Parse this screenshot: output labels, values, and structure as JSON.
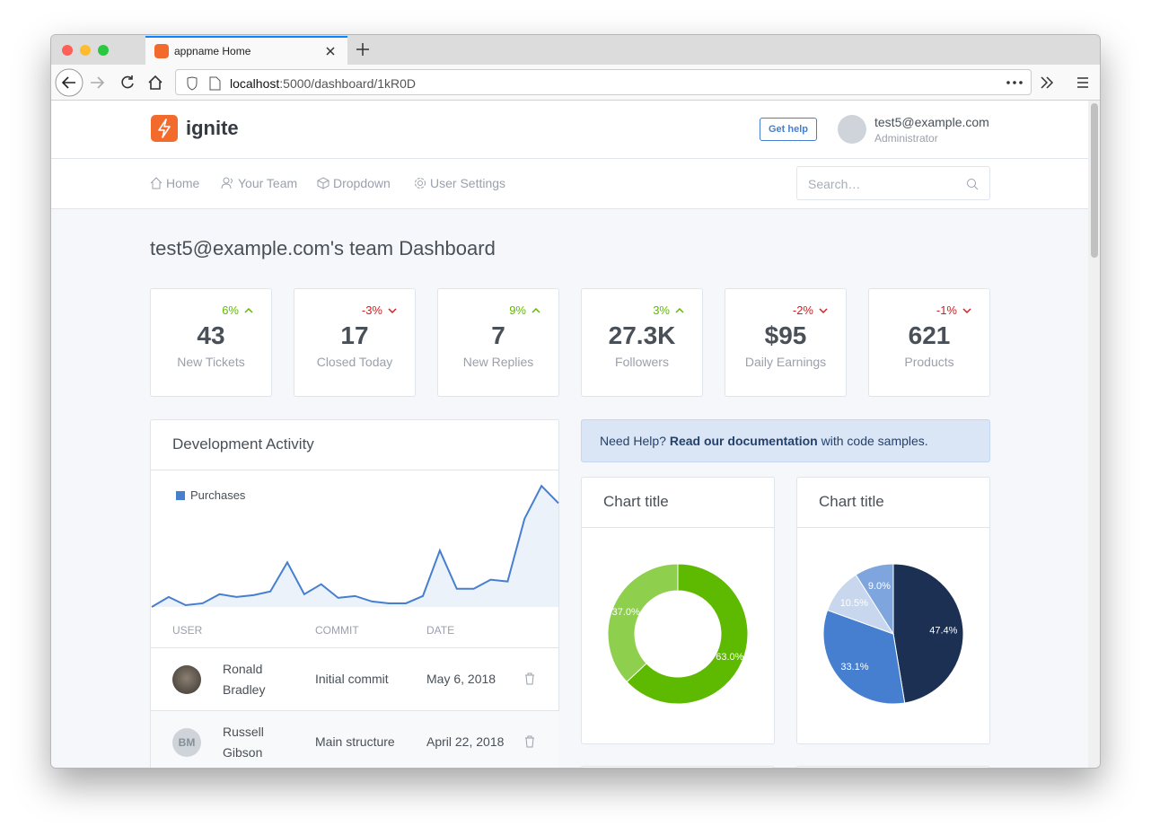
{
  "browser": {
    "tab_title": "appname Home",
    "url_host": "localhost",
    "url_rest": ":5000/dashboard/1kR0D"
  },
  "header": {
    "brand": "ignite",
    "help_button": "Get help",
    "user_email": "test5@example.com",
    "user_role": "Administrator"
  },
  "nav": {
    "items": [
      "Home",
      "Your Team",
      "Dropdown",
      "User Settings"
    ],
    "search_placeholder": "Search…"
  },
  "page_title": "test5@example.com's team Dashboard",
  "stats": [
    {
      "change": "6%",
      "trend": "up",
      "value": "43",
      "label": "New Tickets"
    },
    {
      "change": "-3%",
      "trend": "down",
      "value": "17",
      "label": "Closed Today"
    },
    {
      "change": "9%",
      "trend": "up",
      "value": "7",
      "label": "New Replies"
    },
    {
      "change": "3%",
      "trend": "up",
      "value": "27.3K",
      "label": "Followers"
    },
    {
      "change": "-2%",
      "trend": "down",
      "value": "$95",
      "label": "Daily Earnings"
    },
    {
      "change": "-1%",
      "trend": "down",
      "value": "621",
      "label": "Products"
    }
  ],
  "alert": {
    "lead": "Need Help?",
    "link": "Read our documentation",
    "tail": "with code samples."
  },
  "table": {
    "headers": [
      "USER",
      "COMMIT",
      "DATE"
    ],
    "rows": [
      {
        "name": "Ronald Bradley",
        "commit": "Initial commit",
        "date": "May 6, 2018"
      },
      {
        "initials": "BM",
        "name": "Russell Gibson",
        "commit": "Main structure",
        "date": "April 22, 2018"
      }
    ]
  },
  "chart_data": [
    {
      "type": "area",
      "title": "Development Activity",
      "series": [
        {
          "name": "Purchases",
          "color": "#467fcf",
          "values": [
            0,
            11,
            2,
            4,
            14,
            11,
            13,
            17,
            49,
            14,
            25,
            10,
            12,
            6,
            4,
            4,
            12,
            62,
            20,
            20,
            30,
            28,
            97,
            133,
            114
          ]
        }
      ],
      "ylim": [
        0,
        150
      ]
    },
    {
      "type": "donut",
      "title": "Chart title",
      "values": [
        63.0,
        37.0
      ],
      "value_labels": [
        "63.0%",
        "37.0%"
      ],
      "colors": [
        "#5eba00",
        "#8ecf4d"
      ]
    },
    {
      "type": "pie",
      "title": "Chart title",
      "values": [
        47.4,
        33.1,
        10.5,
        9.0
      ],
      "value_labels": [
        "47.4%",
        "33.1%",
        "10.5%",
        "9.0%"
      ],
      "colors": [
        "#1b3052",
        "#467fcf",
        "#c8d7ee",
        "#7ea5dd"
      ]
    }
  ]
}
